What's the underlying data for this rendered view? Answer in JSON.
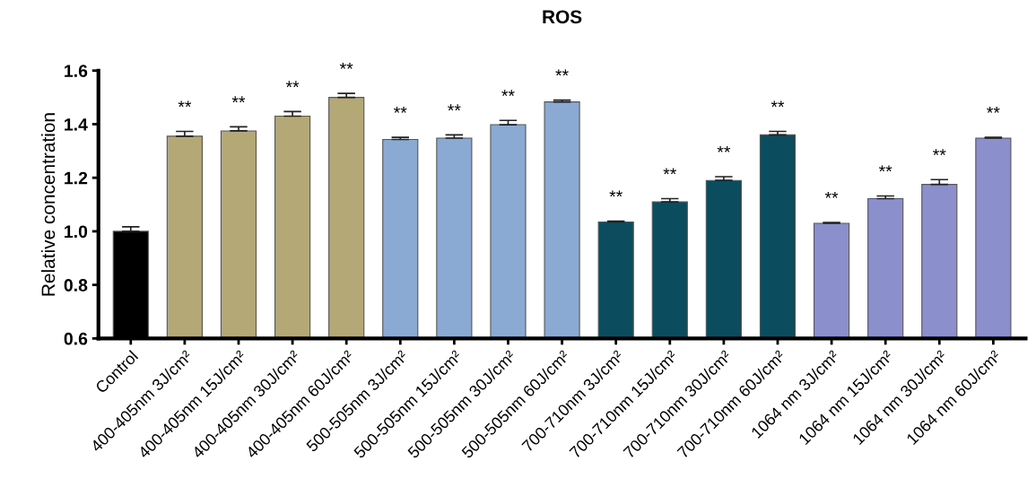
{
  "chart_data": {
    "type": "bar",
    "title": "ROS",
    "ylabel": "Relative concentration",
    "categories": [
      "Control",
      "400-405nm 3J/cm²",
      "400-405nm 15J/cm²",
      "400-405nm 30J/cm²",
      "400-405nm 60J/cm²",
      "500-505nm 3J/cm²",
      "500-505nm 15J/cm²",
      "500-505nm 30J/cm²",
      "500-505nm 60J/cm²",
      "700-710nm 3J/cm²",
      "700-710nm 15J/cm²",
      "700-710nm 30J/cm²",
      "700-710nm 60J/cm²",
      "1064 nm 3J/cm²",
      "1064 nm 15J/cm²",
      "1064 nm 30J/cm²",
      "1064 nm 60J/cm²"
    ],
    "values": [
      1.0,
      1.355,
      1.375,
      1.43,
      1.5,
      1.343,
      1.348,
      1.398,
      1.483,
      1.035,
      1.11,
      1.19,
      1.36,
      1.03,
      1.122,
      1.175,
      1.348
    ],
    "errors": [
      0.017,
      0.018,
      0.015,
      0.017,
      0.015,
      0.008,
      0.012,
      0.016,
      0.007,
      0.003,
      0.012,
      0.014,
      0.013,
      0.003,
      0.01,
      0.018,
      0.003
    ],
    "colors": [
      "#000000",
      "#b3a876",
      "#b3a876",
      "#b3a876",
      "#b3a876",
      "#8aaad4",
      "#8aaad4",
      "#8aaad4",
      "#8aaad4",
      "#0b4c5f",
      "#0b4c5f",
      "#0b4c5f",
      "#0b4c5f",
      "#8b90cd",
      "#8b90cd",
      "#8b90cd",
      "#8b90cd"
    ],
    "ylim": [
      0.6,
      1.6
    ],
    "yticks": [
      {
        "value": 0.6,
        "label": "0.6"
      },
      {
        "value": 0.8,
        "label": "0.8"
      },
      {
        "value": 1.0,
        "label": "1.0"
      },
      {
        "value": 1.2,
        "label": "1.2"
      },
      {
        "value": 1.4,
        "label": "1.4"
      },
      {
        "value": 1.6,
        "label": "1.6"
      }
    ],
    "grid": false,
    "legend": false,
    "annotations": [
      {
        "text": "**",
        "x": "400-405nm 3J/cm²",
        "y": 1.373
      },
      {
        "text": "**",
        "x": "400-405nm 15J/cm²",
        "y": 1.39
      },
      {
        "text": "**",
        "x": "400-405nm 30J/cm²",
        "y": 1.447
      },
      {
        "text": "**",
        "x": "400-405nm 60J/cm²",
        "y": 1.515
      },
      {
        "text": "**",
        "x": "500-505nm 3J/cm²",
        "y": 1.351
      },
      {
        "text": "**",
        "x": "500-505nm 15J/cm²",
        "y": 1.36
      },
      {
        "text": "**",
        "x": "500-505nm 30J/cm²",
        "y": 1.414
      },
      {
        "text": "**",
        "x": "500-505nm 60J/cm²",
        "y": 1.49
      },
      {
        "text": "**",
        "x": "700-710nm 3J/cm²",
        "y": 1.038
      },
      {
        "text": "**",
        "x": "700-710nm 15J/cm²",
        "y": 1.122
      },
      {
        "text": "**",
        "x": "700-710nm 30J/cm²",
        "y": 1.204
      },
      {
        "text": "**",
        "x": "700-710nm 60J/cm²",
        "y": 1.373
      },
      {
        "text": "**",
        "x": "1064 nm 3J/cm²",
        "y": 1.033
      },
      {
        "text": "**",
        "x": "1064 nm 15J/cm²",
        "y": 1.132
      },
      {
        "text": "**",
        "x": "1064 nm 30J/cm²",
        "y": 1.193
      },
      {
        "text": "**",
        "x": "1064 nm 60J/cm²",
        "y": 1.351
      }
    ]
  }
}
